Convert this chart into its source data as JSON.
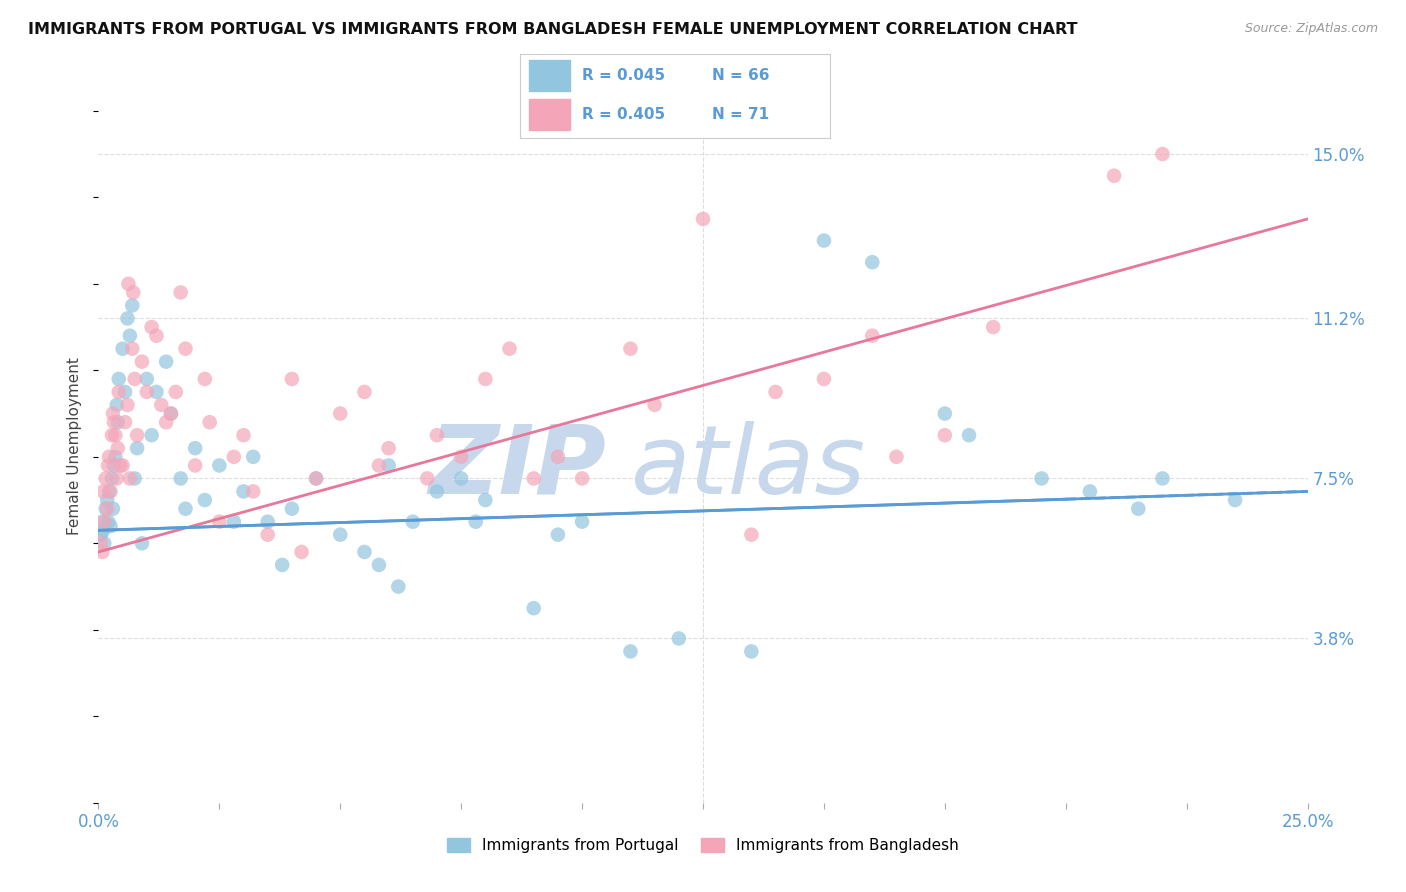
{
  "title": "IMMIGRANTS FROM PORTUGAL VS IMMIGRANTS FROM BANGLADESH FEMALE UNEMPLOYMENT CORRELATION CHART",
  "source": "Source: ZipAtlas.com",
  "ylabel": "Female Unemployment",
  "yticks": [
    3.8,
    7.5,
    11.2,
    15.0
  ],
  "ytick_labels": [
    "3.8%",
    "7.5%",
    "11.2%",
    "15.0%"
  ],
  "xmin": 0.0,
  "xmax": 25.0,
  "ymin": 0.0,
  "ymax": 16.5,
  "legend_r1": "R = 0.045",
  "legend_n1": "N = 66",
  "legend_r2": "R = 0.405",
  "legend_n2": "N = 71",
  "legend_label1": "Immigrants from Portugal",
  "legend_label2": "Immigrants from Bangladesh",
  "color_portugal": "#92C5DE",
  "color_bangladesh": "#F4A6B8",
  "trend_color_portugal": "#5B9BD5",
  "trend_color_bangladesh": "#E8779A",
  "watermark": "ZIPatlas",
  "watermark_zip_color": "#C8D8EC",
  "watermark_atlas_color": "#C8D8EC",
  "background_color": "#FFFFFF",
  "grid_color": "#DDDDDD",
  "tick_color": "#5B9BD5",
  "portugal_trend_start_y": 6.3,
  "portugal_trend_end_y": 7.2,
  "bangladesh_trend_start_y": 5.8,
  "bangladesh_trend_end_y": 13.5,
  "portugal_x": [
    0.05,
    0.08,
    0.1,
    0.12,
    0.15,
    0.18,
    0.2,
    0.22,
    0.25,
    0.28,
    0.3,
    0.32,
    0.35,
    0.38,
    0.4,
    0.42,
    0.5,
    0.55,
    0.6,
    0.65,
    0.7,
    0.75,
    0.8,
    0.9,
    1.0,
    1.1,
    1.2,
    1.4,
    1.5,
    1.7,
    1.8,
    2.0,
    2.2,
    2.5,
    2.8,
    3.0,
    3.2,
    3.5,
    3.8,
    4.0,
    4.5,
    5.0,
    5.5,
    6.0,
    6.5,
    7.0,
    7.5,
    8.0,
    9.0,
    10.0,
    11.0,
    12.0,
    13.5,
    15.0,
    16.0,
    18.0,
    20.5,
    21.5,
    22.0,
    23.5,
    5.8,
    6.2,
    7.8,
    9.5,
    17.5,
    19.5
  ],
  "portugal_y": [
    6.2,
    6.5,
    6.3,
    6.0,
    6.8,
    7.0,
    6.5,
    7.2,
    6.4,
    7.5,
    6.8,
    7.8,
    8.0,
    9.2,
    8.8,
    9.8,
    10.5,
    9.5,
    11.2,
    10.8,
    11.5,
    7.5,
    8.2,
    6.0,
    9.8,
    8.5,
    9.5,
    10.2,
    9.0,
    7.5,
    6.8,
    8.2,
    7.0,
    7.8,
    6.5,
    7.2,
    8.0,
    6.5,
    5.5,
    6.8,
    7.5,
    6.2,
    5.8,
    7.8,
    6.5,
    7.2,
    7.5,
    7.0,
    4.5,
    6.5,
    3.5,
    3.8,
    3.5,
    13.0,
    12.5,
    8.5,
    7.2,
    6.8,
    7.5,
    7.0,
    5.5,
    5.0,
    6.5,
    6.2,
    9.0,
    7.5
  ],
  "bangladesh_x": [
    0.05,
    0.08,
    0.1,
    0.12,
    0.15,
    0.18,
    0.2,
    0.22,
    0.25,
    0.28,
    0.3,
    0.32,
    0.35,
    0.38,
    0.4,
    0.42,
    0.5,
    0.55,
    0.6,
    0.65,
    0.7,
    0.75,
    0.8,
    0.9,
    1.0,
    1.1,
    1.2,
    1.4,
    1.5,
    1.7,
    1.8,
    2.0,
    2.2,
    2.5,
    2.8,
    3.0,
    3.5,
    4.0,
    4.5,
    5.0,
    5.5,
    6.0,
    7.0,
    8.0,
    9.0,
    10.0,
    11.0,
    12.5,
    14.0,
    16.0,
    17.5,
    18.5,
    21.0,
    0.45,
    1.3,
    1.6,
    2.3,
    3.2,
    4.2,
    5.8,
    6.8,
    7.5,
    8.5,
    9.5,
    11.5,
    13.5,
    15.0,
    16.5,
    0.62,
    0.72,
    22.0
  ],
  "bangladesh_y": [
    6.0,
    5.8,
    7.2,
    6.5,
    7.5,
    6.8,
    7.8,
    8.0,
    7.2,
    8.5,
    9.0,
    8.8,
    8.5,
    7.5,
    8.2,
    9.5,
    7.8,
    8.8,
    9.2,
    7.5,
    10.5,
    9.8,
    8.5,
    10.2,
    9.5,
    11.0,
    10.8,
    8.8,
    9.0,
    11.8,
    10.5,
    7.8,
    9.8,
    6.5,
    8.0,
    8.5,
    6.2,
    9.8,
    7.5,
    9.0,
    9.5,
    8.2,
    8.5,
    9.8,
    7.5,
    7.5,
    10.5,
    13.5,
    9.5,
    10.8,
    8.5,
    11.0,
    14.5,
    7.8,
    9.2,
    9.5,
    8.8,
    7.2,
    5.8,
    7.8,
    7.5,
    8.0,
    10.5,
    8.0,
    9.2,
    6.2,
    9.8,
    8.0,
    12.0,
    11.8,
    15.0
  ]
}
